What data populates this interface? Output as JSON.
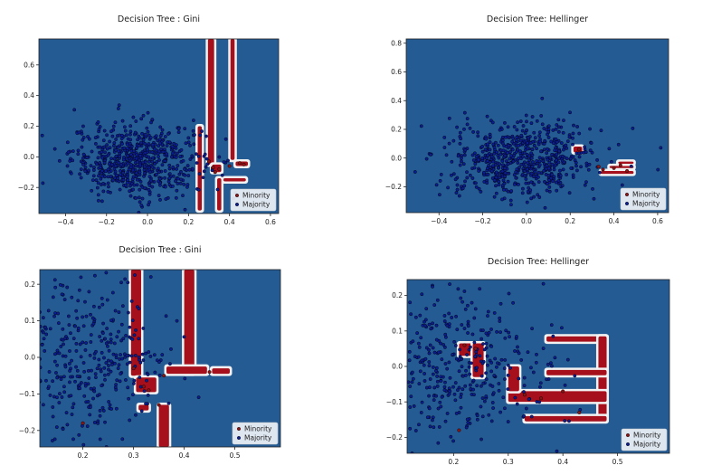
{
  "chart_data": [
    {
      "type": "scatter",
      "title": "Decision Tree : Gini",
      "xticks": [
        -0.4,
        -0.2,
        0.0,
        0.2,
        0.4,
        0.6
      ],
      "yticks": [
        -0.2,
        0.0,
        0.2,
        0.4,
        0.6
      ],
      "xlim": [
        -0.53,
        0.64
      ],
      "ylim": [
        -0.37,
        0.77
      ],
      "legend": {
        "placement": "bottom-right",
        "entries": [
          "Minority",
          "Majority"
        ]
      },
      "background_color": "#245b93",
      "series": [
        {
          "name": "Majority",
          "color": "#0b1d8f",
          "cluster": {
            "center": [
              -0.05,
              -0.02
            ],
            "spread": [
              0.16,
              0.12
            ],
            "count": 650
          }
        },
        {
          "name": "Minority",
          "color": "#8b1414",
          "points": [
            [
              0.32,
              -0.07
            ],
            [
              0.33,
              -0.1
            ],
            [
              0.35,
              -0.08
            ],
            [
              0.3,
              -0.03
            ],
            [
              0.4,
              -0.06
            ],
            [
              0.45,
              -0.04
            ],
            [
              0.47,
              -0.05
            ]
          ]
        }
      ],
      "regions": [
        {
          "x": [
            0.245,
            0.265
          ],
          "y": [
            -0.35,
            0.2
          ]
        },
        {
          "x": [
            0.295,
            0.325
          ],
          "y": [
            -0.05,
            0.77
          ]
        },
        {
          "x": [
            0.405,
            0.425
          ],
          "y": [
            -0.02,
            0.77
          ]
        },
        {
          "x": [
            0.315,
            0.36
          ],
          "y": [
            -0.1,
            -0.05
          ]
        },
        {
          "x": [
            0.37,
            0.48
          ],
          "y": [
            -0.16,
            -0.14
          ]
        },
        {
          "x": [
            0.43,
            0.49
          ],
          "y": [
            -0.06,
            -0.03
          ]
        },
        {
          "x": [
            0.34,
            0.36
          ],
          "y": [
            -0.35,
            -0.14
          ]
        }
      ]
    },
    {
      "type": "scatter",
      "title": "Decision Tree: Hellinger",
      "xticks": [
        -0.4,
        -0.2,
        0.0,
        0.2,
        0.4,
        0.6
      ],
      "yticks": [
        -0.2,
        0.0,
        0.2,
        0.4,
        0.6,
        0.8
      ],
      "xlim": [
        -0.55,
        0.65
      ],
      "ylim": [
        -0.38,
        0.83
      ],
      "legend": {
        "placement": "bottom-right",
        "entries": [
          "Minority",
          "Majority"
        ]
      },
      "background_color": "#245b93",
      "series": [
        {
          "name": "Majority",
          "color": "#0b1d8f",
          "cluster": {
            "center": [
              -0.03,
              -0.01
            ],
            "spread": [
              0.17,
              0.13
            ],
            "count": 650
          }
        },
        {
          "name": "Minority",
          "color": "#8b1414",
          "points": [
            [
              0.24,
              0.06
            ],
            [
              0.33,
              -0.06
            ],
            [
              0.35,
              -0.08
            ],
            [
              0.4,
              -0.07
            ],
            [
              0.43,
              -0.05
            ],
            [
              0.46,
              -0.09
            ]
          ]
        }
      ],
      "regions": [
        {
          "x": [
            0.215,
            0.255
          ],
          "y": [
            0.04,
            0.08
          ]
        },
        {
          "x": [
            0.34,
            0.49
          ],
          "y": [
            -0.11,
            -0.09
          ]
        },
        {
          "x": [
            0.38,
            0.49
          ],
          "y": [
            -0.07,
            -0.055
          ]
        },
        {
          "x": [
            0.42,
            0.49
          ],
          "y": [
            -0.04,
            -0.025
          ]
        }
      ]
    },
    {
      "type": "scatter",
      "title": "Decision Tree : Gini",
      "xticks": [
        0.2,
        0.3,
        0.4,
        0.5
      ],
      "yticks": [
        -0.2,
        -0.1,
        0.0,
        0.1,
        0.2
      ],
      "xlim": [
        0.115,
        0.59
      ],
      "ylim": [
        -0.245,
        0.24
      ],
      "legend": {
        "placement": "bottom-right",
        "entries": [
          "Minority",
          "Majority"
        ]
      },
      "background_color": "#245b93",
      "series": [
        {
          "name": "Majority",
          "color": "#0b1d8f",
          "cluster": {
            "center": [
              0.2,
              0.0
            ],
            "spread": [
              0.09,
              0.11
            ],
            "count": 420
          }
        },
        {
          "name": "Minority",
          "color": "#8b1414",
          "points": [
            [
              0.32,
              -0.08
            ],
            [
              0.33,
              -0.09
            ],
            [
              0.36,
              -0.05
            ],
            [
              0.3,
              -0.03
            ],
            [
              0.45,
              -0.04
            ],
            [
              0.2,
              -0.18
            ],
            [
              0.35,
              -0.13
            ]
          ]
        }
      ],
      "regions": [
        {
          "x": [
            0.295,
            0.315
          ],
          "y": [
            -0.05,
            0.24
          ]
        },
        {
          "x": [
            0.4,
            0.42
          ],
          "y": [
            -0.045,
            0.24
          ]
        },
        {
          "x": [
            0.365,
            0.445
          ],
          "y": [
            -0.045,
            -0.025
          ]
        },
        {
          "x": [
            0.455,
            0.49
          ],
          "y": [
            -0.045,
            -0.03
          ]
        },
        {
          "x": [
            0.305,
            0.345
          ],
          "y": [
            -0.095,
            -0.055
          ]
        },
        {
          "x": [
            0.31,
            0.33
          ],
          "y": [
            -0.145,
            -0.13
          ]
        },
        {
          "x": [
            0.35,
            0.37
          ],
          "y": [
            -0.245,
            -0.13
          ]
        }
      ]
    },
    {
      "type": "scatter",
      "title": "Decision Tree: Hellinger",
      "xticks": [
        0.2,
        0.3,
        0.4,
        0.5
      ],
      "yticks": [
        -0.2,
        -0.1,
        0.0,
        0.1,
        0.2
      ],
      "xlim": [
        0.115,
        0.595
      ],
      "ylim": [
        -0.245,
        0.245
      ],
      "legend": {
        "placement": "bottom-right",
        "entries": [
          "Minority",
          "Majority"
        ]
      },
      "background_color": "#245b93",
      "series": [
        {
          "name": "Majority",
          "color": "#0b1d8f",
          "cluster": {
            "center": [
              0.2,
              0.0
            ],
            "spread": [
              0.09,
              0.11
            ],
            "count": 420
          }
        },
        {
          "name": "Minority",
          "color": "#8b1414",
          "points": [
            [
              0.22,
              0.06
            ],
            [
              0.24,
              0.05
            ],
            [
              0.33,
              -0.08
            ],
            [
              0.36,
              -0.09
            ],
            [
              0.4,
              -0.07
            ],
            [
              0.43,
              -0.13
            ],
            [
              0.21,
              -0.18
            ]
          ]
        }
      ],
      "regions": [
        {
          "x": [
            0.21,
            0.255
          ],
          "y": [
            0.03,
            0.065
          ]
        },
        {
          "x": [
            0.235,
            0.255
          ],
          "y": [
            -0.03,
            0.065
          ]
        },
        {
          "x": [
            0.37,
            0.48
          ],
          "y": [
            0.07,
            0.085
          ]
        },
        {
          "x": [
            0.465,
            0.48
          ],
          "y": [
            -0.15,
            0.085
          ]
        },
        {
          "x": [
            0.37,
            0.48
          ],
          "y": [
            -0.025,
            -0.01
          ]
        },
        {
          "x": [
            0.3,
            0.48
          ],
          "y": [
            -0.1,
            -0.07
          ]
        },
        {
          "x": [
            0.33,
            0.48
          ],
          "y": [
            -0.155,
            -0.14
          ]
        },
        {
          "x": [
            0.3,
            0.32
          ],
          "y": [
            -0.07,
            0.0
          ]
        }
      ]
    }
  ]
}
